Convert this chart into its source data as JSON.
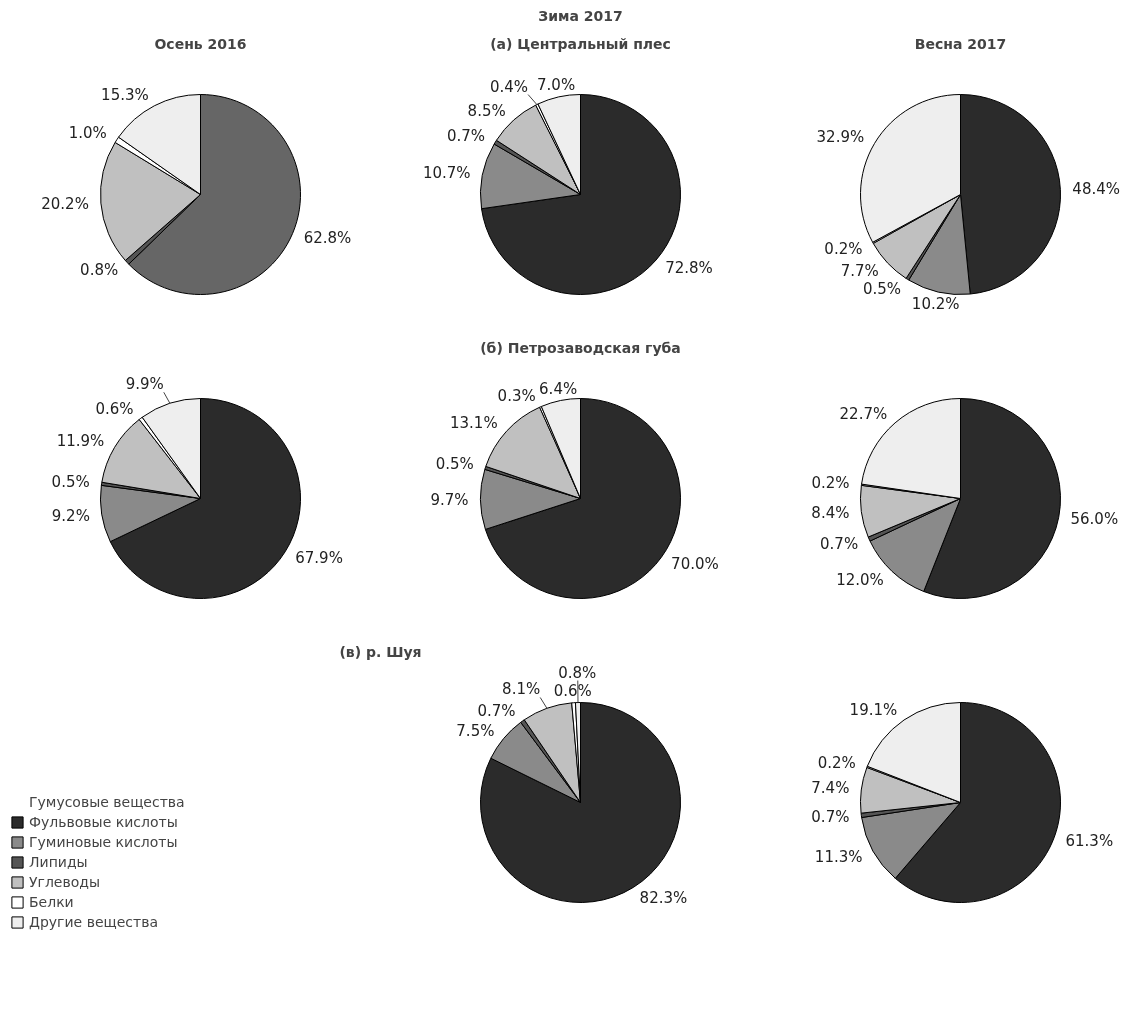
{
  "chart_data": [
    {
      "type": "pie",
      "title": "Осень 2016",
      "categories": [
        null,
        null,
        null,
        null,
        null
      ],
      "values": [
        62.8,
        0.8,
        20.2,
        1.0,
        15.3
      ],
      "colors": [
        "#666666",
        "#555555",
        "#c0c0c0",
        "#ffffff",
        "#eeeeee"
      ],
      "value_labels": [
        "62.8%",
        "0.8%",
        "20.2%",
        "1.0%",
        "15.3%"
      ]
    },
    {
      "type": "pie",
      "title": "Зима 2017",
      "subtitle": "(а) Центральный плес",
      "categories": [
        null,
        null,
        null,
        null,
        null,
        null
      ],
      "values": [
        72.8,
        10.7,
        0.7,
        8.5,
        0.4,
        7.0
      ],
      "colors": [
        "#2b2b2b",
        "#8a8a8a",
        "#555555",
        "#c0c0c0",
        "#ffffff",
        "#eeeeee"
      ],
      "value_labels": [
        "72.8%",
        "10.7%",
        "0.7%",
        "8.5%",
        "0.4%",
        "7.0%"
      ]
    },
    {
      "type": "pie",
      "title": "Весна 2017",
      "categories": [
        null,
        null,
        null,
        null,
        null,
        null
      ],
      "values": [
        48.4,
        10.2,
        0.5,
        7.7,
        0.2,
        32.9
      ],
      "colors": [
        "#2b2b2b",
        "#8a8a8a",
        "#555555",
        "#c0c0c0",
        "#ffffff",
        "#eeeeee"
      ],
      "value_labels": [
        "48.4%",
        "10.2%",
        "0.5%",
        "7.7%",
        "0.2%",
        "32.9%"
      ]
    },
    {
      "type": "pie",
      "categories": [
        null,
        null,
        null,
        null,
        null,
        null
      ],
      "values": [
        67.9,
        9.2,
        0.5,
        11.9,
        0.6,
        9.9
      ],
      "colors": [
        "#2b2b2b",
        "#8a8a8a",
        "#555555",
        "#c0c0c0",
        "#ffffff",
        "#eeeeee"
      ],
      "value_labels": [
        "67.9%",
        "9.2%",
        "0.5%",
        "11.9%",
        "0.6%",
        "9.9%"
      ]
    },
    {
      "type": "pie",
      "subtitle": "(б) Петрозаводская губа",
      "categories": [
        null,
        null,
        null,
        null,
        null,
        null
      ],
      "values": [
        70.0,
        9.7,
        0.5,
        13.1,
        0.3,
        6.4
      ],
      "colors": [
        "#2b2b2b",
        "#8a8a8a",
        "#555555",
        "#c0c0c0",
        "#ffffff",
        "#eeeeee"
      ],
      "value_labels": [
        "70.0%",
        "9.7%",
        "0.5%",
        "13.1%",
        "0.3%",
        "6.4%"
      ]
    },
    {
      "type": "pie",
      "categories": [
        null,
        null,
        null,
        null,
        null,
        null
      ],
      "values": [
        56.0,
        12.0,
        0.7,
        8.4,
        0.2,
        22.7
      ],
      "colors": [
        "#2b2b2b",
        "#8a8a8a",
        "#555555",
        "#c0c0c0",
        "#ffffff",
        "#eeeeee"
      ],
      "value_labels": [
        "56.0%",
        "12.0%",
        "0.7%",
        "8.4%",
        "0.2%",
        "22.7%"
      ]
    },
    {
      "type": "pie",
      "subtitle": "(в) р. Шуя",
      "legend": "left",
      "categories": [
        "Гумусовые вещества",
        "Фульвовые кислоты",
        "Гуминовые кислоты",
        "Липиды",
        "Углеводы",
        "Белки",
        "Другие вещества"
      ],
      "values": [
        null,
        82.3,
        7.5,
        0.7,
        8.1,
        0.6,
        0.8
      ],
      "colors": [
        "#666666",
        "#2b2b2b",
        "#8a8a8a",
        "#555555",
        "#c0c0c0",
        "#ffffff",
        "#eeeeee"
      ],
      "value_labels": [
        null,
        "82.3%",
        "7.5%",
        "0.7%",
        "8.1%",
        "0.6%",
        "0.8%"
      ]
    },
    {
      "type": "pie",
      "categories": [
        null,
        null,
        null,
        null,
        null,
        null
      ],
      "values": [
        61.3,
        11.3,
        0.7,
        7.4,
        0.2,
        19.1
      ],
      "colors": [
        "#2b2b2b",
        "#8a8a8a",
        "#555555",
        "#c0c0c0",
        "#ffffff",
        "#eeeeee"
      ],
      "value_labels": [
        "61.3%",
        "11.3%",
        "0.7%",
        "7.4%",
        "0.2%",
        "19.1%"
      ]
    }
  ]
}
